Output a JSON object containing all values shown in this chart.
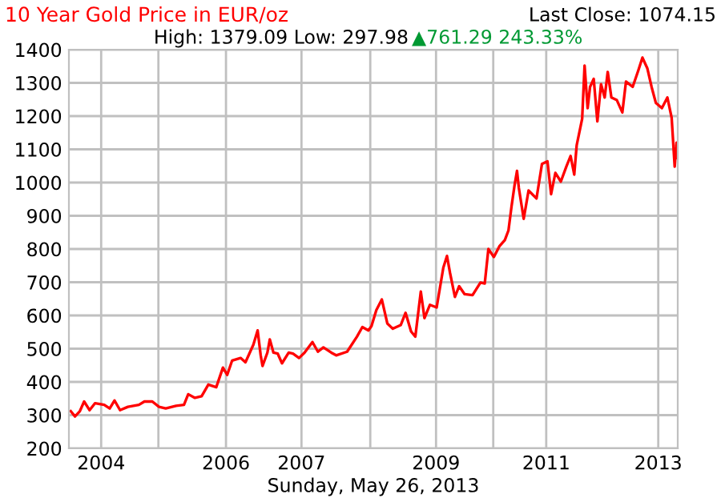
{
  "chart_data": {
    "type": "line",
    "title": "10 Year Gold Price in EUR/oz",
    "subtitle": "High: 1379.09 Low: 297.98",
    "annotations": [
      "Last Close: 1074.15",
      "▲761.29 243.33%",
      "Sunday, May 26, 2013"
    ],
    "x": [
      2003.43,
      2003.5,
      2003.58,
      2003.65,
      2003.74,
      2003.83,
      2003.98,
      2004.07,
      2004.15,
      2004.24,
      2004.37,
      2004.55,
      2004.64,
      2004.77,
      2004.88,
      2004.99,
      2005.16,
      2005.29,
      2005.36,
      2005.47,
      2005.58,
      2005.69,
      2005.82,
      2005.93,
      2006.0,
      2006.08,
      2006.22,
      2006.3,
      2006.43,
      2006.5,
      2006.55,
      2006.58,
      2006.66,
      2006.7,
      2006.76,
      2006.83,
      2006.9,
      2007.01,
      2007.08,
      2007.18,
      2007.27,
      2007.4,
      2007.49,
      2007.58,
      2007.71,
      2007.79,
      2007.97,
      2008.13,
      2008.22,
      2008.32,
      2008.37,
      2008.45,
      2008.54,
      2008.63,
      2008.72,
      2008.85,
      2008.93,
      2009.02,
      2009.09,
      2009.18,
      2009.24,
      2009.33,
      2009.44,
      2009.55,
      2009.61,
      2009.66,
      2009.74,
      2009.81,
      2009.9,
      2010.03,
      2010.16,
      2010.23,
      2010.29,
      2010.38,
      2010.47,
      2010.56,
      2010.62,
      2010.67,
      2010.72,
      2010.76,
      2010.79,
      2010.87,
      2010.95,
      2011.08,
      2011.17,
      2011.26,
      2011.32,
      2011.39,
      2011.48,
      2011.57,
      2011.64,
      2011.7,
      2011.74,
      2011.83,
      2011.87,
      2011.92,
      2011.96,
      2012.02,
      2012.08,
      2012.14,
      2012.2,
      2012.25,
      2012.31,
      2012.4,
      2012.49,
      2012.55,
      2012.66,
      2012.75,
      2012.82,
      2012.9,
      2012.97,
      2013.04,
      2013.14,
      2013.23,
      2013.3,
      2013.35,
      2013.38,
      2013.4
    ],
    "series": [
      {
        "color": "#ff0000",
        "values": [
          312,
          296,
          312,
          341,
          315,
          336,
          331,
          320,
          344,
          315,
          325,
          331,
          341,
          341,
          325,
          320,
          328,
          331,
          363,
          352,
          357,
          392,
          384,
          443,
          421,
          464,
          472,
          459,
          512,
          555,
          480,
          448,
          488,
          528,
          488,
          485,
          456,
          488,
          485,
          472,
          488,
          520,
          491,
          504,
          488,
          480,
          491,
          536,
          565,
          555,
          568,
          616,
          648,
          576,
          560,
          571,
          608,
          552,
          536,
          672,
          592,
          632,
          624,
          744,
          779,
          728,
          656,
          688,
          664,
          661,
          699,
          696,
          800,
          776,
          808,
          827,
          856,
          928,
          992,
          1035,
          984,
          891,
          976,
          952,
          1056,
          1064,
          965,
          1029,
          1003,
          1048,
          1080,
          1024,
          1112,
          1192,
          1352,
          1224,
          1288,
          1312,
          1184,
          1296,
          1256,
          1333,
          1256,
          1248,
          1211,
          1304,
          1288,
          1336,
          1376,
          1344,
          1288,
          1240,
          1224,
          1256,
          1195,
          1048,
          1120,
          1074
        ]
      }
    ],
    "xlim": [
      2003.4,
      2013.4
    ],
    "xticks": [
      {
        "value": 2003.93,
        "label": "2004"
      },
      {
        "value": 2004.87,
        "label": null
      },
      {
        "value": 2005.98,
        "label": "2006"
      },
      {
        "value": 2007.22,
        "label": "2007"
      },
      {
        "value": 2008.35,
        "label": null
      },
      {
        "value": 2009.43,
        "label": "2009"
      },
      {
        "value": 2010.37,
        "label": null
      },
      {
        "value": 2011.24,
        "label": "2011"
      },
      {
        "value": 2013.08,
        "label": "2013"
      }
    ],
    "ylim": [
      200,
      1400
    ],
    "yticks": [
      200,
      300,
      400,
      500,
      600,
      700,
      800,
      900,
      1000,
      1100,
      1200,
      1300,
      1400
    ],
    "grid": true,
    "marker": "none",
    "line_style": "solid",
    "legend": false
  }
}
